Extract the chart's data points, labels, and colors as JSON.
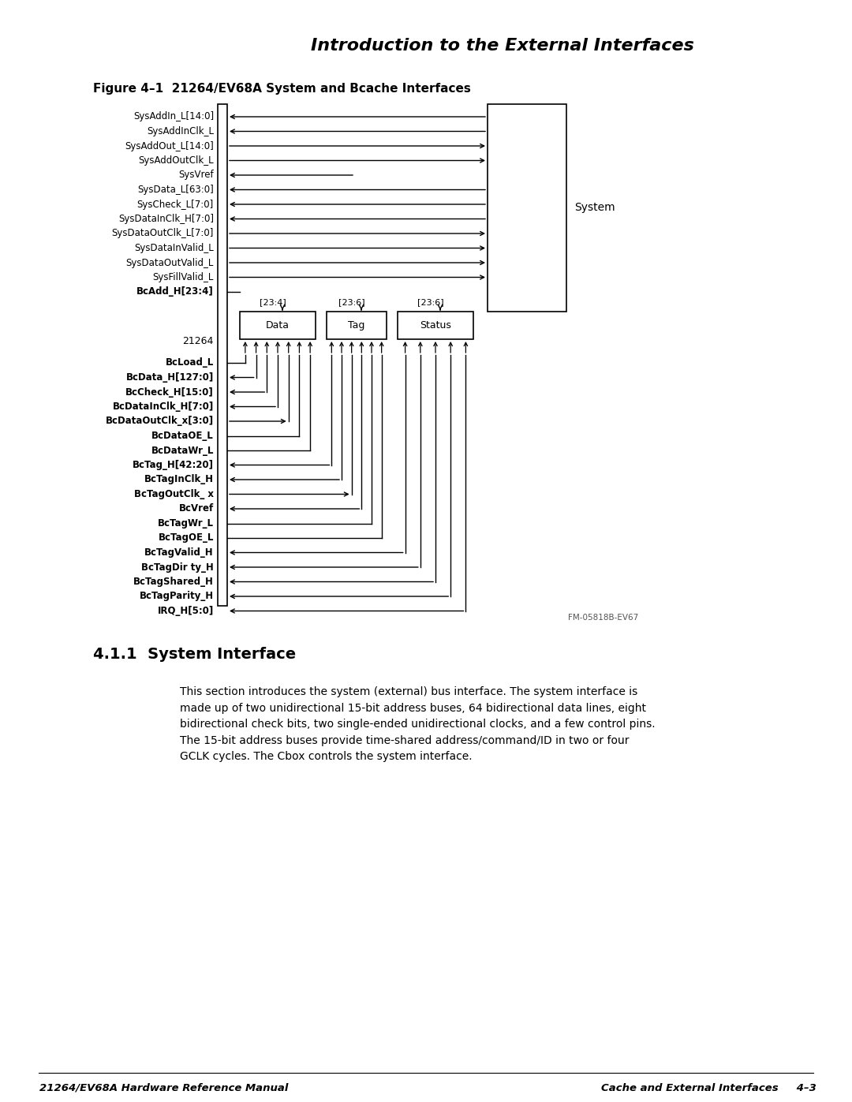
{
  "title": "Introduction to the External Interfaces",
  "fig_title": "Figure 4–1  21264/EV68A System and Bcache Interfaces",
  "section_title": "4.1.1  System Interface",
  "section_text": "This section introduces the system (external) bus interface. The system interface is\nmade up of two unidirectional 15-bit address buses, 64 bidirectional data lines, eight\nbidirectional check bits, two single-ended unidirectional clocks, and a few control pins.\nThe 15-bit address buses provide time-shared address/command/ID in two or four\nGCLK cycles. The Cbox controls the system interface.",
  "footer_left": "21264/EV68A Hardware Reference Manual",
  "footer_right": "Cache and External Interfaces     4–3",
  "footer_label": "FM-05818B-EV67",
  "cpu_label": "21264",
  "system_label": "System",
  "box_labels": [
    "Data",
    "Tag",
    "Status"
  ],
  "box_addr_labels": [
    "[23:4]",
    "[23:6]",
    "[23:6]"
  ],
  "sys_signals": [
    {
      "name": "SysAddIn_L[14:0]",
      "arrow": "left"
    },
    {
      "name": "SysAddInClk_L",
      "arrow": "left"
    },
    {
      "name": "SysAddOut_L[14:0]",
      "arrow": "right"
    },
    {
      "name": "SysAddOutClk_L",
      "arrow": "right"
    },
    {
      "name": "SysVref",
      "arrow": "left",
      "short": true
    },
    {
      "name": "SysData_L[63:0]",
      "arrow": "left"
    },
    {
      "name": "SysCheck_L[7:0]",
      "arrow": "left"
    },
    {
      "name": "SysDataInClk_H[7:0]",
      "arrow": "left"
    },
    {
      "name": "SysDataOutClk_L[7:0]",
      "arrow": "right"
    },
    {
      "name": "SysDataInValid_L",
      "arrow": "right"
    },
    {
      "name": "SysDataOutValid_L",
      "arrow": "right"
    },
    {
      "name": "SysFillValid_L",
      "arrow": "right"
    },
    {
      "name": "BcAdd_H[23:4]",
      "arrow": "none"
    }
  ],
  "bc_signals": [
    {
      "name": "BcLoad_L",
      "arrow": "none",
      "rail_group": "data",
      "rail_idx": 0
    },
    {
      "name": "BcData_H[127:0]",
      "arrow": "left",
      "rail_group": "data",
      "rail_idx": 1
    },
    {
      "name": "BcCheck_H[15:0]",
      "arrow": "left",
      "rail_group": "data",
      "rail_idx": 2
    },
    {
      "name": "BcDataInClk_H[7:0]",
      "arrow": "left",
      "rail_group": "data",
      "rail_idx": 3
    },
    {
      "name": "BcDataOutClk_x[3:0]",
      "arrow": "right",
      "rail_group": "data",
      "rail_idx": 4
    },
    {
      "name": "BcDataOE_L",
      "arrow": "none",
      "rail_group": "data",
      "rail_idx": 5
    },
    {
      "name": "BcDataWr_L",
      "arrow": "none",
      "rail_group": "data",
      "rail_idx": 6
    },
    {
      "name": "BcTag_H[42:20]",
      "arrow": "left",
      "rail_group": "tag",
      "rail_idx": 0
    },
    {
      "name": "BcTagInClk_H",
      "arrow": "left",
      "rail_group": "tag",
      "rail_idx": 1
    },
    {
      "name": "BcTagOutClk_ x",
      "arrow": "right",
      "rail_group": "tag",
      "rail_idx": 2
    },
    {
      "name": "BcVref",
      "arrow": "left",
      "rail_group": "tag",
      "rail_idx": 3
    },
    {
      "name": "BcTagWr_L",
      "arrow": "none",
      "rail_group": "tag",
      "rail_idx": 4
    },
    {
      "name": "BcTagOE_L",
      "arrow": "none",
      "rail_group": "tag",
      "rail_idx": 5
    },
    {
      "name": "BcTagValid_H",
      "arrow": "left",
      "rail_group": "status",
      "rail_idx": 0
    },
    {
      "name": "BcTagDir ty_H",
      "arrow": "left",
      "rail_group": "status",
      "rail_idx": 1
    },
    {
      "name": "BcTagShared_H",
      "arrow": "left",
      "rail_group": "status",
      "rail_idx": 2
    },
    {
      "name": "BcTagParity_H",
      "arrow": "left",
      "rail_group": "status",
      "rail_idx": 3
    },
    {
      "name": "IRQ_H[5:0]",
      "arrow": "left",
      "rail_group": "status",
      "rail_idx": 4
    }
  ]
}
